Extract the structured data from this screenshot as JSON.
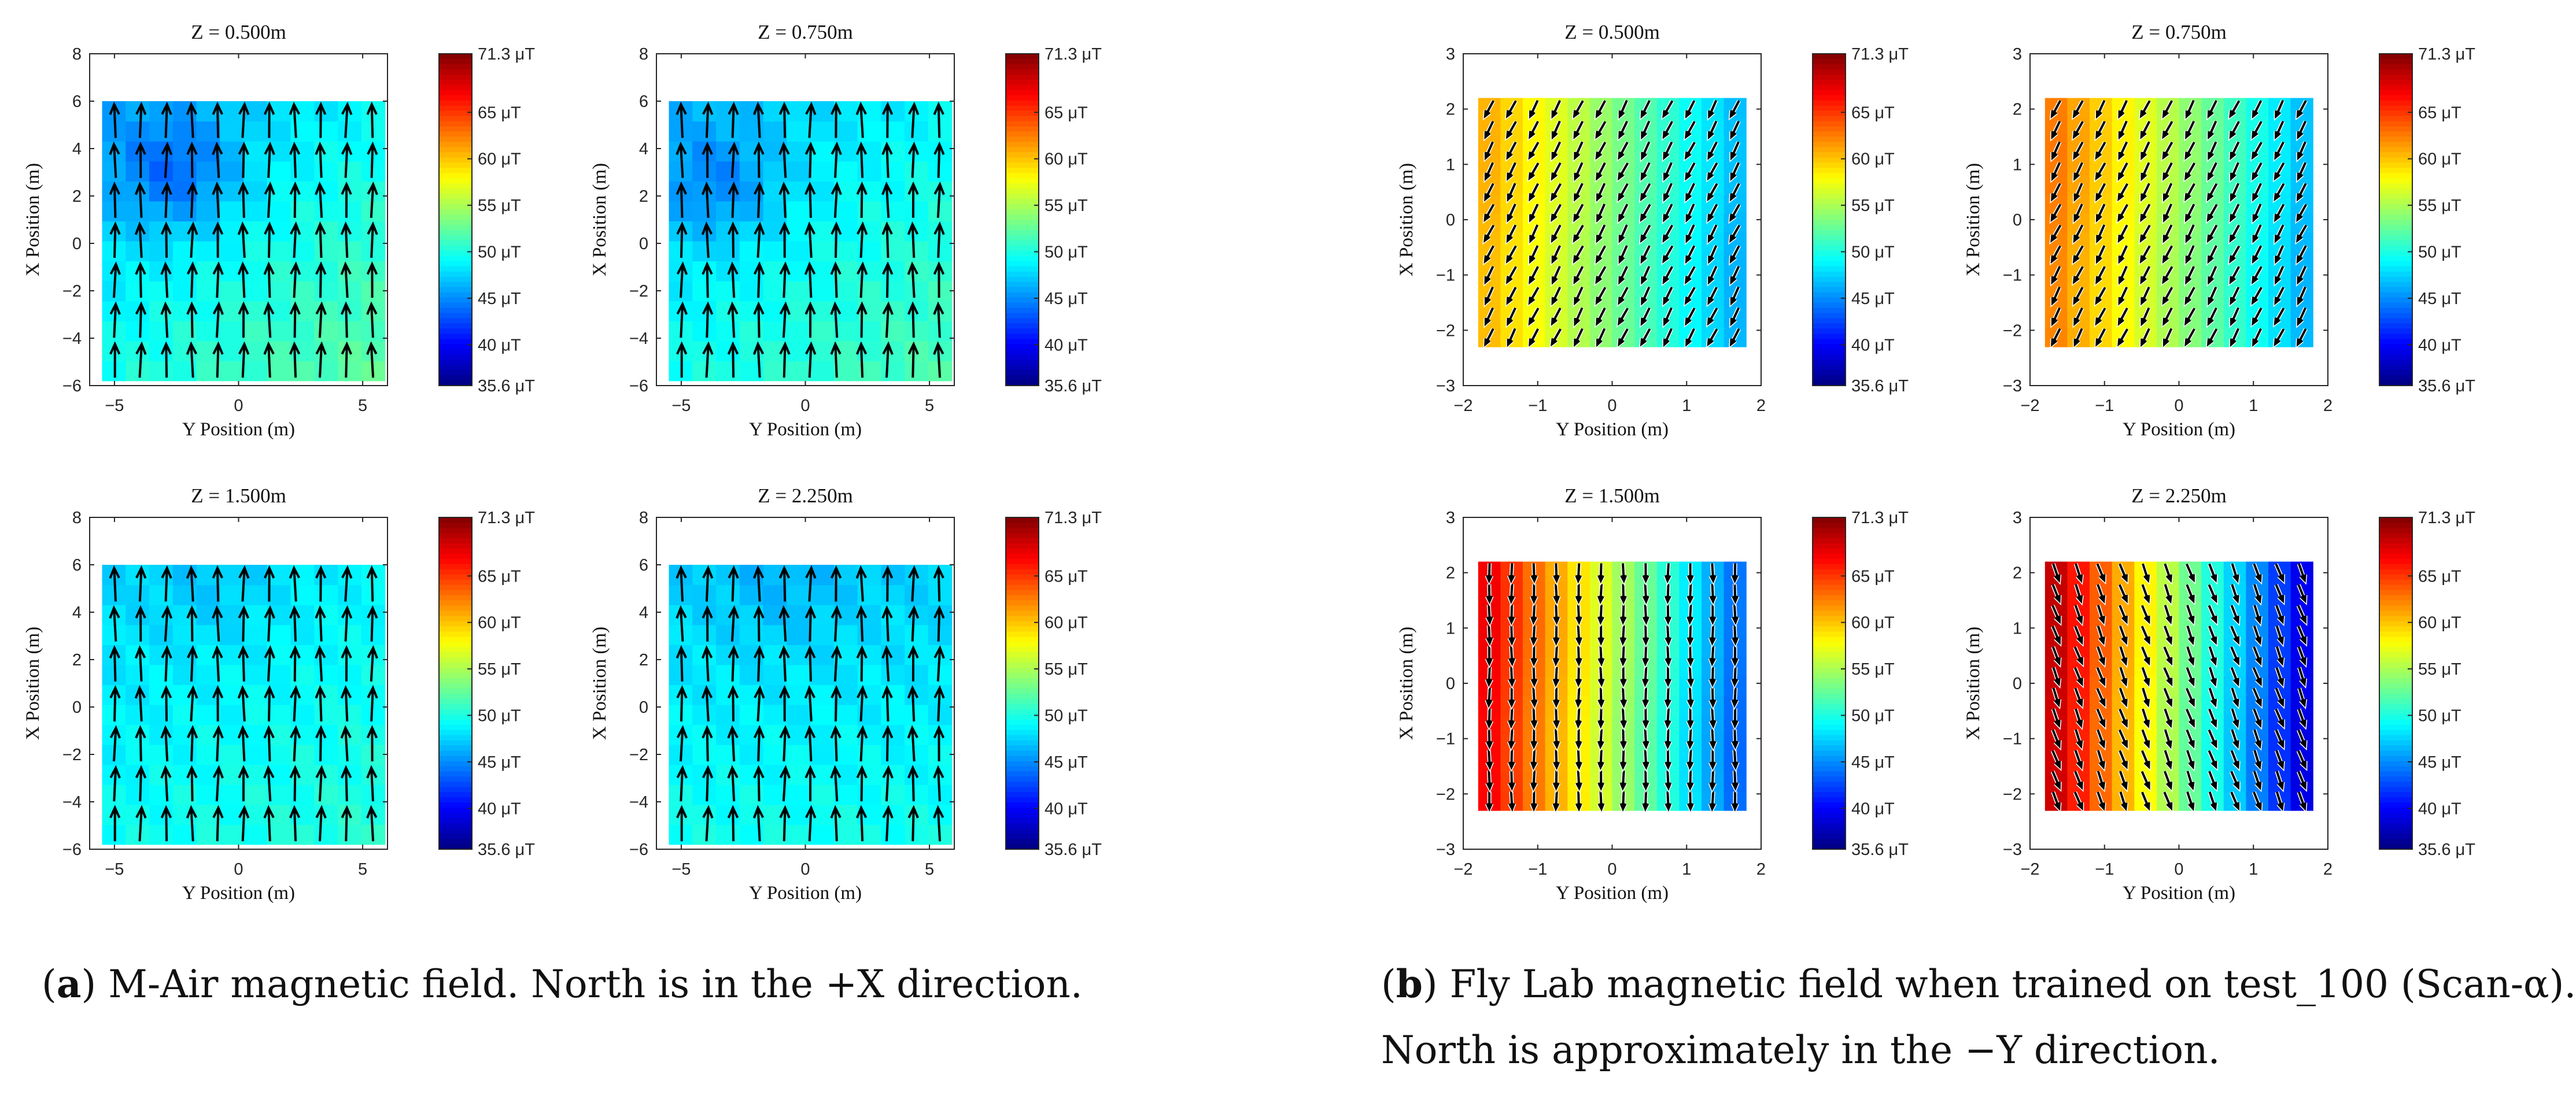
{
  "figure": {
    "caption_a": {
      "letter": "a",
      "text": "M-Air magnetic field. North is in the +X direction."
    },
    "caption_b": {
      "letter": "b",
      "text": "Fly Lab magnetic field when trained on test_100 (Scan-α).",
      "text2": "North is approximately in the −Y direction."
    }
  },
  "chart_data": [
    {
      "type": "heatmap",
      "group": "a",
      "title": "Z = 0.500m",
      "xlabel": "Y Position (m)",
      "ylabel": "X Position (m)",
      "xlim": [
        -6,
        6
      ],
      "ylim": [
        -6,
        8
      ],
      "xticks": [
        -5,
        0,
        5
      ],
      "yticks": [
        -6,
        -4,
        -2,
        0,
        2,
        4,
        6,
        8
      ],
      "grid_x": [
        -5.5,
        5.9
      ],
      "grid_y": [
        -5.8,
        6.0
      ],
      "cols": 12,
      "rows": 14,
      "field_uT": {
        "base": 49.3,
        "gradient_y": 0.25,
        "gradient_x": -0.3,
        "low_center": [
          -2.5,
          3.0
        ],
        "low_delta": -4.0
      },
      "vector_direction": "+X",
      "vector_cols": 11,
      "vector_rows": 7,
      "colorbar": {
        "min": 35.6,
        "max": 71.3,
        "unit": "μT",
        "ticks": [
          "35.6",
          "40",
          "45",
          "50",
          "55",
          "60",
          "65",
          "71.3"
        ]
      }
    },
    {
      "type": "heatmap",
      "group": "a",
      "title": "Z = 0.750m",
      "xlabel": "Y Position (m)",
      "ylabel": "X Position (m)",
      "xlim": [
        -6,
        6
      ],
      "ylim": [
        -6,
        8
      ],
      "xticks": [
        -5,
        0,
        5
      ],
      "yticks": [
        -6,
        -4,
        -2,
        0,
        2,
        4,
        6,
        8
      ],
      "grid_x": [
        -5.5,
        5.9
      ],
      "grid_y": [
        -5.8,
        6.0
      ],
      "cols": 12,
      "rows": 14,
      "field_uT": {
        "base": 49.2,
        "gradient_y": 0.2,
        "gradient_x": -0.25,
        "low_center": [
          -3.5,
          2.5
        ],
        "low_delta": -3.0
      },
      "vector_direction": "+X",
      "vector_cols": 11,
      "vector_rows": 7,
      "colorbar": {
        "min": 35.6,
        "max": 71.3,
        "unit": "μT",
        "ticks": [
          "35.6",
          "40",
          "45",
          "50",
          "55",
          "60",
          "65",
          "71.3"
        ]
      }
    },
    {
      "type": "heatmap",
      "group": "a",
      "title": "Z = 1.500m",
      "xlabel": "Y Position (m)",
      "ylabel": "X Position (m)",
      "xlim": [
        -6,
        6
      ],
      "ylim": [
        -6,
        8
      ],
      "xticks": [
        -5,
        0,
        5
      ],
      "yticks": [
        -6,
        -4,
        -2,
        0,
        2,
        4,
        6,
        8
      ],
      "grid_x": [
        -5.5,
        5.9
      ],
      "grid_y": [
        -5.8,
        6.0
      ],
      "cols": 12,
      "rows": 14,
      "field_uT": {
        "base": 49.0,
        "gradient_y": 0.1,
        "gradient_x": -0.15,
        "low_center": [
          -1.0,
          5.0
        ],
        "low_delta": -1.0
      },
      "vector_direction": "+X",
      "vector_cols": 11,
      "vector_rows": 7,
      "colorbar": {
        "min": 35.6,
        "max": 71.3,
        "unit": "μT",
        "ticks": [
          "35.6",
          "40",
          "45",
          "50",
          "55",
          "60",
          "65",
          "71.3"
        ]
      }
    },
    {
      "type": "heatmap",
      "group": "a",
      "title": "Z = 2.250m",
      "xlabel": "Y Position (m)",
      "ylabel": "X Position (m)",
      "xlim": [
        -6,
        6
      ],
      "ylim": [
        -6,
        8
      ],
      "xticks": [
        -5,
        0,
        5
      ],
      "yticks": [
        -6,
        -4,
        -2,
        0,
        2,
        4,
        6,
        8
      ],
      "grid_x": [
        -5.5,
        5.9
      ],
      "grid_y": [
        -5.8,
        6.0
      ],
      "cols": 12,
      "rows": 14,
      "field_uT": {
        "base": 48.5,
        "gradient_y": 0.0,
        "gradient_x": -0.2,
        "low_center": [
          -1.0,
          5.0
        ],
        "low_delta": -1.0
      },
      "vector_direction": "+X",
      "vector_cols": 11,
      "vector_rows": 7,
      "colorbar": {
        "min": 35.6,
        "max": 71.3,
        "unit": "μT",
        "ticks": [
          "35.6",
          "40",
          "45",
          "50",
          "55",
          "60",
          "65",
          "71.3"
        ]
      }
    },
    {
      "type": "heatmap",
      "group": "b",
      "title": "Z = 0.500m",
      "xlabel": "Y Position (m)",
      "ylabel": "X Position (m)",
      "xlim": [
        -2,
        2
      ],
      "ylim": [
        -3,
        3
      ],
      "xticks": [
        -2,
        -1,
        0,
        1,
        2
      ],
      "yticks": [
        -3,
        -2,
        -1,
        0,
        1,
        2,
        3
      ],
      "grid_x": [
        -1.8,
        1.8
      ],
      "grid_y": [
        -2.3,
        2.2
      ],
      "cols": 12,
      "rows": 13,
      "field_uT": {
        "left": 61.0,
        "right": 46.0
      },
      "vector_direction": "-Y-X",
      "vector_cols": 12,
      "vector_rows": 12,
      "colorbar": {
        "min": 35.6,
        "max": 71.3,
        "unit": "μT",
        "ticks": [
          "35.6",
          "40",
          "45",
          "50",
          "55",
          "60",
          "65",
          "71.3"
        ]
      }
    },
    {
      "type": "heatmap",
      "group": "b",
      "title": "Z = 0.750m",
      "xlabel": "Y Position (m)",
      "ylabel": "X Position (m)",
      "xlim": [
        -2,
        2
      ],
      "ylim": [
        -3,
        3
      ],
      "xticks": [
        -2,
        -1,
        0,
        1,
        2
      ],
      "yticks": [
        -3,
        -2,
        -1,
        0,
        1,
        2,
        3
      ],
      "grid_x": [
        -1.8,
        1.8
      ],
      "grid_y": [
        -2.3,
        2.2
      ],
      "cols": 12,
      "rows": 13,
      "field_uT": {
        "left": 63.0,
        "right": 46.0
      },
      "vector_direction": "-Y-X",
      "vector_cols": 12,
      "vector_rows": 12,
      "colorbar": {
        "min": 35.6,
        "max": 71.3,
        "unit": "μT",
        "ticks": [
          "35.6",
          "40",
          "45",
          "50",
          "55",
          "60",
          "65",
          "71.3"
        ]
      }
    },
    {
      "type": "heatmap",
      "group": "b",
      "title": "Z = 1.500m",
      "xlabel": "Y Position (m)",
      "ylabel": "X Position (m)",
      "xlim": [
        -2,
        2
      ],
      "ylim": [
        -3,
        3
      ],
      "xticks": [
        -2,
        -1,
        0,
        1,
        2
      ],
      "yticks": [
        -3,
        -2,
        -1,
        0,
        1,
        2,
        3
      ],
      "grid_x": [
        -1.8,
        1.8
      ],
      "grid_y": [
        -2.3,
        2.2
      ],
      "cols": 12,
      "rows": 13,
      "field_uT": {
        "left": 68.0,
        "right": 43.0
      },
      "vector_direction": "-X",
      "vector_cols": 12,
      "vector_rows": 12,
      "colorbar": {
        "min": 35.6,
        "max": 71.3,
        "unit": "μT",
        "ticks": [
          "35.6",
          "40",
          "45",
          "50",
          "55",
          "60",
          "65",
          "71.3"
        ]
      }
    },
    {
      "type": "heatmap",
      "group": "b",
      "title": "Z = 2.250m",
      "xlabel": "Y Position (m)",
      "ylabel": "X Position (m)",
      "xlim": [
        -2,
        2
      ],
      "ylim": [
        -3,
        3
      ],
      "xticks": [
        -2,
        -1,
        0,
        1,
        2
      ],
      "yticks": [
        -3,
        -2,
        -1,
        0,
        1,
        2,
        3
      ],
      "grid_x": [
        -1.8,
        1.8
      ],
      "grid_y": [
        -2.3,
        2.2
      ],
      "cols": 12,
      "rows": 13,
      "field_uT": {
        "left": 70.0,
        "right": 38.0
      },
      "vector_direction": "-X+Y",
      "vector_cols": 12,
      "vector_rows": 12,
      "colorbar": {
        "min": 35.6,
        "max": 71.3,
        "unit": "μT",
        "ticks": [
          "35.6",
          "40",
          "45",
          "50",
          "55",
          "60",
          "65",
          "71.3"
        ]
      }
    }
  ]
}
